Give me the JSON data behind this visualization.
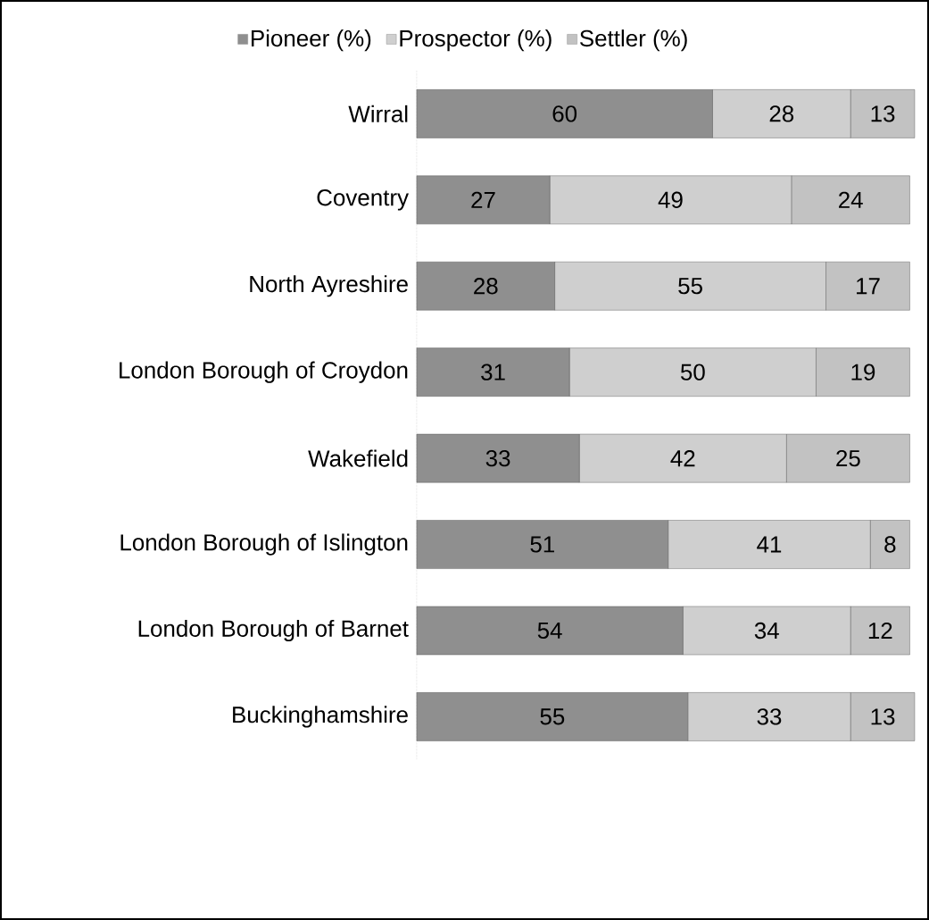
{
  "chart_data": {
    "type": "bar",
    "orientation": "horizontal",
    "stacked": true,
    "data_labels": true,
    "legend": "top",
    "categories": [
      "Wirral",
      "Coventry",
      "North Ayreshire",
      "London Borough of Croydon",
      "Wakefield",
      "London Borough of Islington",
      "London Borough of Barnet",
      "Buckinghamshire"
    ],
    "series": [
      {
        "name": "Pioneer (%)",
        "color": "#8f8f8f",
        "values": [
          60,
          27,
          28,
          31,
          33,
          51,
          54,
          55
        ]
      },
      {
        "name": "Prospector (%)",
        "color": "#cfcfcf",
        "values": [
          28,
          49,
          55,
          50,
          42,
          41,
          34,
          33
        ]
      },
      {
        "name": "Settler (%)",
        "color": "#c2c2c2",
        "values": [
          13,
          24,
          17,
          19,
          25,
          8,
          12,
          13
        ]
      }
    ]
  }
}
